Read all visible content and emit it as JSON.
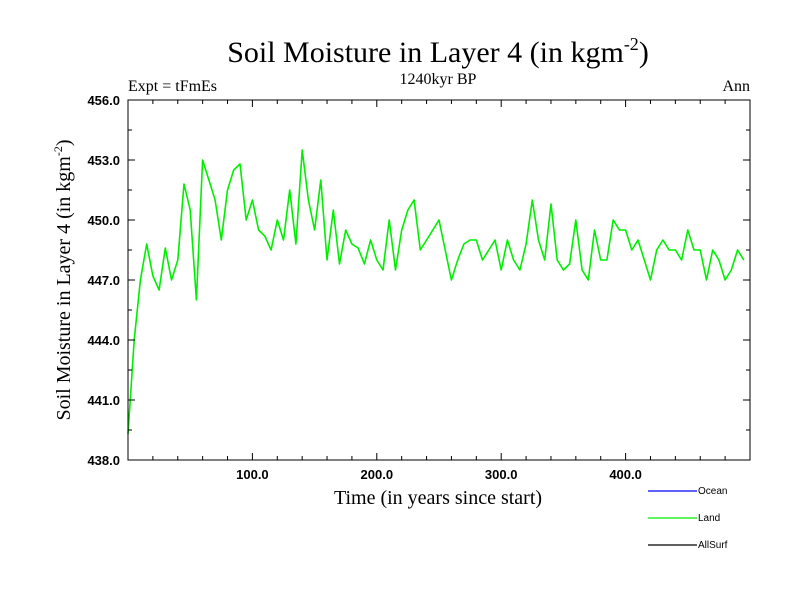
{
  "chart_data": {
    "type": "line",
    "title": "Soil Moisture in Layer 4 (in kgm",
    "title_sup": "-2",
    "title_close": ")",
    "subtitle_left": "Expt = tFmEs",
    "subtitle_center": "1240kyr BP",
    "subtitle_right": "Ann",
    "xlabel": "Time (in years since start)",
    "ylabel": "Soil Moisture in Layer 4 (in kgm",
    "ylabel_sup": "-2",
    "ylabel_close": ")",
    "xlim": [
      0,
      500
    ],
    "ylim": [
      438,
      456
    ],
    "xticks": [
      100,
      200,
      300,
      400
    ],
    "xtick_labels": [
      "100.0",
      "200.0",
      "300.0",
      "400.0"
    ],
    "yticks": [
      438,
      441,
      444,
      447,
      450,
      453,
      456
    ],
    "ytick_labels": [
      "438.0",
      "441.0",
      "444.0",
      "447.0",
      "450.0",
      "453.0",
      "456.0"
    ],
    "legend": [
      {
        "name": "Ocean",
        "color": "#0000ff"
      },
      {
        "name": "Land",
        "color": "#00ee00"
      },
      {
        "name": "AllSurf",
        "color": "#000000"
      }
    ],
    "series": [
      {
        "name": "Land",
        "color": "#00ee00",
        "x_start": 0,
        "x_step": 5,
        "values": [
          439.3,
          444.0,
          447.0,
          448.8,
          447.2,
          446.5,
          448.6,
          447.0,
          448.0,
          451.8,
          450.5,
          446.0,
          453.0,
          452.0,
          451.0,
          449.0,
          451.5,
          452.5,
          452.8,
          450.0,
          451.0,
          449.5,
          449.2,
          448.5,
          450.0,
          449.0,
          451.5,
          448.8,
          453.5,
          451.0,
          449.5,
          452.0,
          448.0,
          450.5,
          447.8,
          449.5,
          448.8,
          448.6,
          447.8,
          449.0,
          448.0,
          447.5,
          450.0,
          447.5,
          449.5,
          450.5,
          451.0,
          448.5,
          449.0,
          449.5,
          450.0,
          448.5,
          447.0,
          448.0,
          448.8,
          449.0,
          449.0,
          448.0,
          448.5,
          449.0,
          447.5,
          449.0,
          448.0,
          447.5,
          448.8,
          451.0,
          449.0,
          448.0,
          450.8,
          448.0,
          447.5,
          447.8,
          450.0,
          447.5,
          447.0,
          449.5,
          448.0,
          448.0,
          450.0,
          449.5,
          449.5,
          448.5,
          449.0,
          448.0,
          447.0,
          448.5,
          449.0,
          448.5,
          448.5,
          448.0,
          449.5,
          448.5,
          448.5,
          447.0,
          448.5,
          448.0,
          447.0,
          447.5,
          448.5,
          448.0
        ]
      }
    ]
  }
}
